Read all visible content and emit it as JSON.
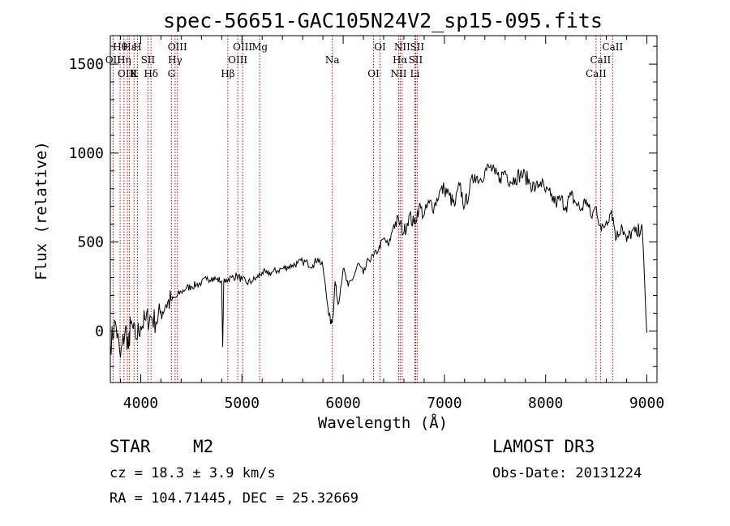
{
  "chart_data": {
    "type": "line",
    "title": "spec-56651-GAC105N24V2_sp15-095.fits",
    "xlabel": "Wavelength (Å)",
    "ylabel": "Flux (relative)",
    "xlim": [
      3700,
      9100
    ],
    "ylim": [
      -290,
      1660
    ],
    "xticks": [
      4000,
      5000,
      6000,
      7000,
      8000,
      9000
    ],
    "yticks": [
      0,
      500,
      1000,
      1500
    ],
    "tick_labels_x": [
      "4000",
      "5000",
      "6000",
      "7000",
      "8000",
      "9000"
    ],
    "tick_labels_y": [
      "0",
      "500",
      "1000",
      "1500"
    ],
    "series": [
      {
        "name": "flux",
        "x": [
          3700,
          3750,
          3800,
          3850,
          3880,
          3900,
          3950,
          4000,
          4050,
          4100,
          4150,
          4200,
          4250,
          4300,
          4350,
          4400,
          4450,
          4500,
          4550,
          4600,
          4650,
          4700,
          4750,
          4800,
          4810,
          4820,
          4850,
          4900,
          4950,
          5000,
          5050,
          5100,
          5150,
          5200,
          5250,
          5300,
          5350,
          5400,
          5450,
          5500,
          5550,
          5600,
          5650,
          5700,
          5750,
          5800,
          5850,
          5880,
          5900,
          5920,
          5950,
          6000,
          6050,
          6100,
          6150,
          6200,
          6250,
          6300,
          6350,
          6400,
          6450,
          6500,
          6550,
          6600,
          6650,
          6700,
          6750,
          6800,
          6850,
          6900,
          6950,
          7000,
          7050,
          7100,
          7150,
          7200,
          7250,
          7300,
          7350,
          7400,
          7450,
          7500,
          7550,
          7600,
          7650,
          7700,
          7750,
          7800,
          7850,
          7900,
          7950,
          8000,
          8050,
          8100,
          8150,
          8200,
          8250,
          8300,
          8350,
          8400,
          8450,
          8500,
          8550,
          8600,
          8650,
          8700,
          8750,
          8800,
          8850,
          8900,
          8950,
          9000
        ],
        "y": [
          -80,
          50,
          -150,
          20,
          -100,
          40,
          -40,
          30,
          60,
          80,
          50,
          110,
          150,
          170,
          190,
          220,
          240,
          250,
          260,
          270,
          290,
          300,
          290,
          280,
          -90,
          270,
          290,
          300,
          310,
          290,
          270,
          280,
          300,
          330,
          320,
          330,
          340,
          350,
          360,
          370,
          380,
          390,
          380,
          370,
          410,
          360,
          130,
          40,
          80,
          280,
          150,
          350,
          250,
          300,
          380,
          320,
          400,
          420,
          460,
          520,
          480,
          600,
          620,
          550,
          650,
          600,
          700,
          650,
          720,
          700,
          780,
          800,
          760,
          700,
          820,
          700,
          800,
          880,
          850,
          900,
          920,
          880,
          860,
          900,
          840,
          860,
          880,
          870,
          830,
          800,
          840,
          780,
          760,
          720,
          740,
          700,
          760,
          720,
          680,
          740,
          640,
          700,
          560,
          620,
          680,
          520,
          600,
          500,
          560,
          540,
          600,
          -10
        ]
      }
    ],
    "spectral_lines": [
      {
        "label": "Hθ",
        "x": 3797
      },
      {
        "label": "OII",
        "x": 3727
      },
      {
        "label": "OIII",
        "x": 3869
      },
      {
        "label": "Hε",
        "x": 3889
      },
      {
        "label": "Hη",
        "x": 3835
      },
      {
        "label": "K",
        "x": 3934
      },
      {
        "label": "H",
        "x": 3968
      },
      {
        "label": "SII",
        "x": 4072
      },
      {
        "label": "Hδ",
        "x": 4102
      },
      {
        "label": "OIII",
        "x": 4363
      },
      {
        "label": "Hγ",
        "x": 4340
      },
      {
        "label": "G",
        "x": 4304
      },
      {
        "label": "OIII",
        "x": 5007
      },
      {
        "label": "OIII",
        "x": 4959
      },
      {
        "label": "Hβ",
        "x": 4861
      },
      {
        "label": "Mg",
        "x": 5175
      },
      {
        "label": "Na",
        "x": 5893
      },
      {
        "label": "OI",
        "x": 6300
      },
      {
        "label": "OI",
        "x": 6364
      },
      {
        "label": "Hα",
        "x": 6563
      },
      {
        "label": "NII",
        "x": 6548
      },
      {
        "label": "NII",
        "x": 6583
      },
      {
        "label": "SII",
        "x": 6716
      },
      {
        "label": "Li",
        "x": 6708
      },
      {
        "label": "SII",
        "x": 6731
      },
      {
        "label": "CaII",
        "x": 8542
      },
      {
        "label": "CaII",
        "x": 8498
      },
      {
        "label": "CaII",
        "x": 8662
      }
    ]
  },
  "info": {
    "object_class": "STAR",
    "subclass": "M2",
    "survey": "LAMOST DR3",
    "cz": "cz = 18.3 ± 3.9 km/s",
    "obs_date": "Obs-Date: 20131224",
    "coords": "RA = 104.71445, DEC =  25.32669"
  },
  "colors": {
    "line_marker": "#c00000",
    "spectrum": "#000000",
    "background": "#ffffff"
  }
}
